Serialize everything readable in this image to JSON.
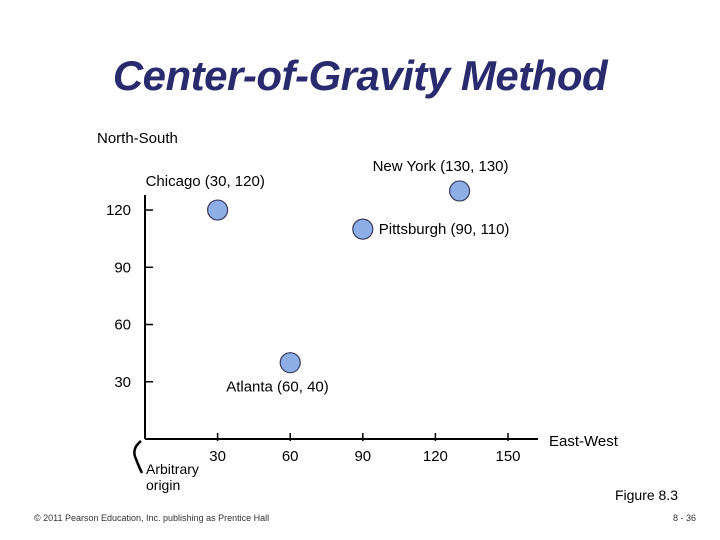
{
  "slide": {
    "title": "Center-of-Gravity Method",
    "figure_label": "Figure 8.3",
    "footer": "© 2011 Pearson Education, Inc. publishing as Prentice Hall",
    "page_number": "8 - 36",
    "origin_label": "Arbitrary\norigin"
  },
  "chart_data": {
    "type": "scatter",
    "title": "Center-of-Gravity Method",
    "xlabel": "East-West",
    "ylabel": "North-South",
    "x_ticks": [
      30,
      60,
      90,
      120,
      150
    ],
    "y_ticks": [
      30,
      60,
      90,
      120
    ],
    "xlim": [
      0,
      160
    ],
    "ylim": [
      0,
      140
    ],
    "grid": false,
    "marker_color": "#8eaee8",
    "points": [
      {
        "label": "Chicago (30, 120)",
        "x": 30,
        "y": 120
      },
      {
        "label": "New York (130, 130)",
        "x": 130,
        "y": 130
      },
      {
        "label": "Pittsburgh (90, 110)",
        "x": 90,
        "y": 110
      },
      {
        "label": "Atlanta (60, 40)",
        "x": 60,
        "y": 40
      }
    ]
  }
}
